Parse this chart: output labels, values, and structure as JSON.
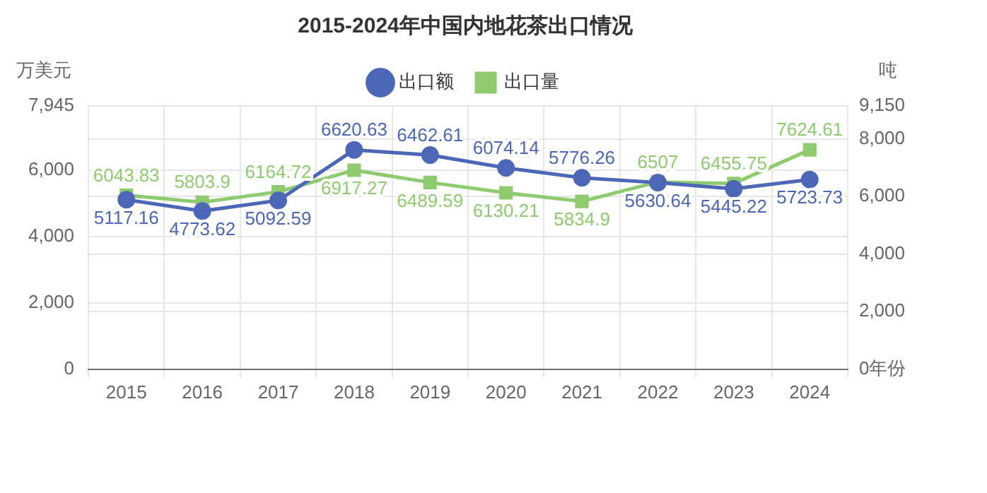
{
  "chart_data": {
    "type": "line",
    "title": "2015-2024年中国内地花茶出口情况",
    "xlabel": "年份",
    "ylabel": "万美元",
    "y2label": "吨",
    "categories": [
      "2015",
      "2016",
      "2017",
      "2018",
      "2019",
      "2020",
      "2021",
      "2022",
      "2023",
      "2024"
    ],
    "series": [
      {
        "name": "出口额",
        "color": "#4c66b8",
        "marker": "circle",
        "values": [
          5117.16,
          4773.62,
          5092.59,
          6620.63,
          6462.61,
          6074.14,
          5776.26,
          5630.64,
          5445.22,
          5723.73
        ]
      },
      {
        "name": "出口量",
        "color": "#8ecb6e",
        "marker": "square",
        "axis": "y2",
        "values": [
          6043.83,
          5803.9,
          6164.72,
          6917.27,
          6489.59,
          6130.21,
          5834.9,
          6507,
          6455.75,
          7624.61
        ]
      }
    ],
    "ylim": [
      0,
      7945
    ],
    "yticks": [
      0,
      {
        "value": 2000,
        "label": "2,000"
      },
      {
        "value": 4000,
        "label": "4,000"
      },
      {
        "value": 6000,
        "label": "6,000"
      },
      {
        "value": 7945,
        "label": "7,945"
      }
    ],
    "y2lim": [
      0,
      9150
    ],
    "y2ticks": [
      0,
      {
        "value": 2000,
        "label": "2,000"
      },
      {
        "value": 4000,
        "label": "4,000"
      },
      {
        "value": 6000,
        "label": "6,000"
      },
      {
        "value": 8000,
        "label": "8,000"
      },
      {
        "value": 9150,
        "label": "9,150"
      }
    ],
    "grid": true,
    "legend": "top",
    "data_labels": true,
    "line_style": "solid"
  }
}
